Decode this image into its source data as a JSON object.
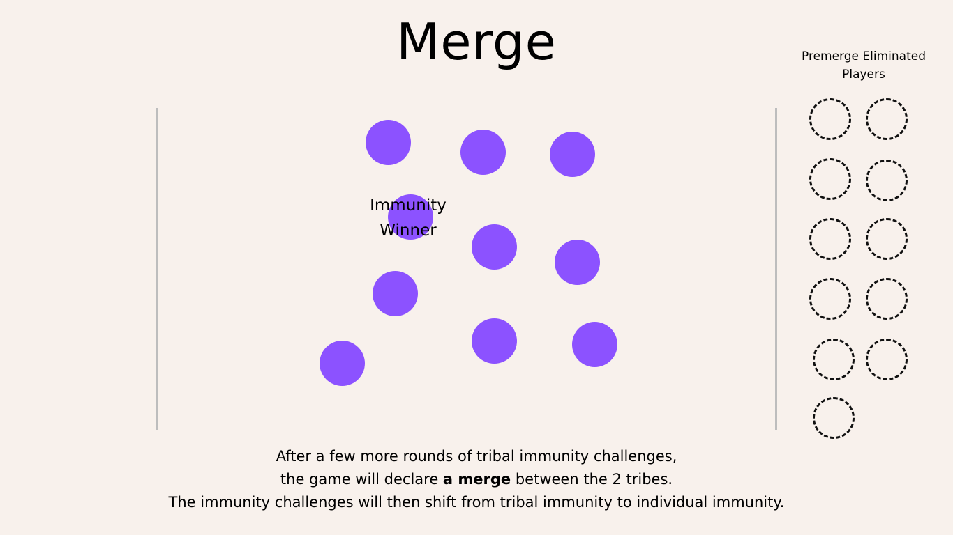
{
  "title": "Merge",
  "eliminated_panel": {
    "title_line1": "Premerge Eliminated",
    "title_line2": "Players"
  },
  "player_color": "#8C52FF",
  "immunity_label": {
    "line1": "Immunity",
    "line2": "Winner"
  },
  "caption": {
    "line1": "After a few more rounds of tribal immunity challenges,",
    "line2_before": "the game will declare ",
    "line2_bold": "a merge",
    "line2_after": " between the 2 tribes.",
    "line3": "The immunity challenges will then shift from tribal immunity to individual immunity."
  }
}
